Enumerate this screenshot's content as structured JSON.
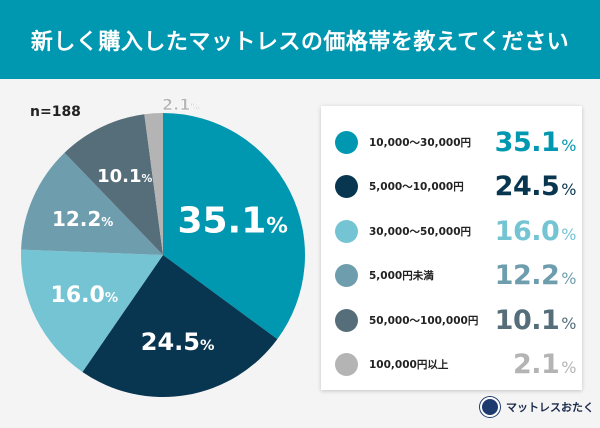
{
  "title": "新しく購入したマットレスの価格帯を教えてください",
  "sample": "n=188",
  "brand": "マットレスおたく",
  "chart_data": {
    "type": "pie",
    "start": "top",
    "direction": "clockwise",
    "unit": "%",
    "categories": [
      "10,000〜30,000円",
      "5,000〜10,000円",
      "30,000〜50,000円",
      "5,000円未満",
      "50,000〜100,000円",
      "100,000円以上"
    ],
    "values": [
      35.1,
      24.5,
      16.0,
      12.2,
      10.1,
      2.1
    ],
    "labels": [
      "35.1",
      "24.5",
      "16.0",
      "12.2",
      "10.1",
      "2.1"
    ],
    "colors": [
      "#0097b0",
      "#083650",
      "#74c4d4",
      "#6e9dad",
      "#566d7a",
      "#b4b4b4"
    ],
    "legend_placement": "right"
  }
}
